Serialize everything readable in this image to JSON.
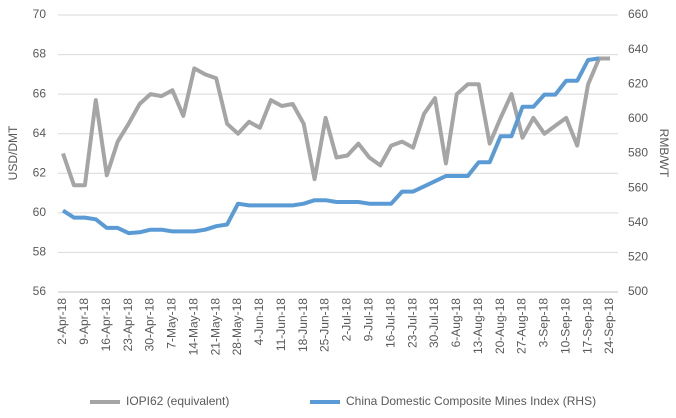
{
  "chart_data": {
    "type": "line",
    "ylabel": "USD/DMT",
    "y2label": "RMB/WT",
    "categories": [
      "2-Apr-18",
      null,
      "9-Apr-18",
      null,
      "16-Apr-18",
      null,
      "23-Apr-18",
      null,
      "30-Apr-18",
      null,
      "7-May-18",
      null,
      "14-May-18",
      null,
      "21-May-18",
      null,
      "28-May-18",
      null,
      "4-Jun-18",
      null,
      "11-Jun-18",
      null,
      "18-Jun-18",
      null,
      "25-Jun-18",
      null,
      "2-Jul-18",
      null,
      "9-Jul-18",
      null,
      "16-Jul-18",
      null,
      "23-Jul-18",
      null,
      "30-Jul-18",
      null,
      "6-Aug-18",
      null,
      "13-Aug-18",
      null,
      "20-Aug-18",
      null,
      "27-Aug-18",
      null,
      "3-Sep-18",
      null,
      "10-Sep-18",
      null,
      "17-Sep-18",
      null,
      "24-Sep-18"
    ],
    "series": [
      {
        "name": "IOPI62 (equivalent)",
        "color": "#a5a5a5",
        "values": [
          63,
          61.4,
          61.4,
          65.7,
          61.9,
          63.6,
          64.5,
          65.5,
          66.0,
          65.9,
          66.2,
          64.9,
          67.3,
          67.0,
          66.8,
          64.5,
          64.0,
          64.6,
          64.3,
          65.7,
          65.4,
          65.5,
          64.5,
          61.7,
          64.8,
          62.8,
          62.9,
          63.5,
          62.8,
          62.4,
          63.4,
          63.6,
          63.3,
          65.0,
          65.8,
          62.5,
          66.0,
          66.5,
          66.5,
          63.5,
          64.8,
          66.0,
          63.8,
          64.8,
          64.0,
          64.4,
          64.8,
          63.4,
          66.5,
          67.8,
          67.8
        ]
      },
      {
        "name": "China Domestic Composite Mines Index (RHS)",
        "color": "#5b9bd5",
        "axis": "y2",
        "values": [
          547,
          543,
          543,
          542,
          537,
          537,
          534,
          534.5,
          536,
          536,
          535,
          535,
          535,
          536,
          538,
          539,
          551,
          550,
          550,
          550,
          550,
          550,
          551,
          553,
          553,
          552,
          552,
          552,
          551,
          551,
          551,
          558,
          558,
          561,
          564,
          567,
          567,
          567,
          575,
          575,
          590,
          590,
          607,
          607,
          614,
          614,
          622,
          622,
          634,
          635,
          null
        ]
      }
    ],
    "ylim": [
      56,
      70
    ],
    "yticks": [
      56,
      58,
      60,
      62,
      64,
      66,
      68,
      70
    ],
    "y2lim": [
      500,
      660
    ],
    "y2ticks": [
      500,
      520,
      540,
      560,
      580,
      600,
      620,
      640,
      660
    ],
    "grid": true,
    "legend": "bottom"
  }
}
